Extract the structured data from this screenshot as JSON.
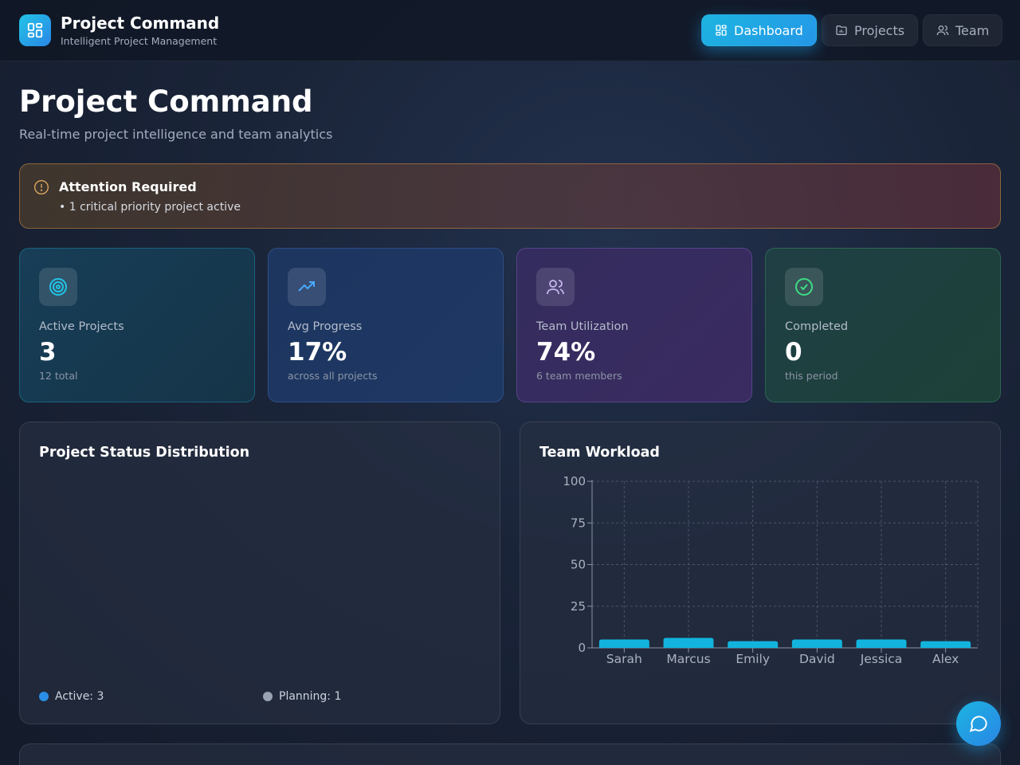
{
  "header": {
    "title": "Project Command",
    "subtitle": "Intelligent Project Management",
    "logo_icon": "grid-icon",
    "nav": [
      {
        "label": "Dashboard",
        "icon": "dashboard-icon",
        "active": true
      },
      {
        "label": "Projects",
        "icon": "folder-icon",
        "active": false
      },
      {
        "label": "Team",
        "icon": "users-icon",
        "active": false
      }
    ]
  },
  "page": {
    "title": "Project Command",
    "subtitle": "Real-time project intelligence and team analytics"
  },
  "alert": {
    "title": "Attention Required",
    "items": [
      "• 1 critical priority project active"
    ]
  },
  "stats": [
    {
      "label": "Active Projects",
      "value": "3",
      "sub": "12 total",
      "icon": "target-icon",
      "accent": "#22c4e6"
    },
    {
      "label": "Avg Progress",
      "value": "17%",
      "sub": "across all projects",
      "icon": "trending-up-icon",
      "accent": "#4aa8ff"
    },
    {
      "label": "Team Utilization",
      "value": "74%",
      "sub": "6 team members",
      "icon": "users-icon",
      "accent": "#c8b8f0"
    },
    {
      "label": "Completed",
      "value": "0",
      "sub": "this period",
      "icon": "check-circle-icon",
      "accent": "#3ddc84"
    }
  ],
  "status_panel": {
    "title": "Project Status Distribution",
    "legend": [
      {
        "label": "Active: 3",
        "color": "#2a8ee6"
      },
      {
        "label": "Planning: 1",
        "color": "#9aa3b2"
      }
    ]
  },
  "workload_panel": {
    "title": "Team Workload"
  },
  "chart_data": {
    "type": "bar",
    "title": "Team Workload",
    "categories": [
      "Sarah",
      "Marcus",
      "Emily",
      "David",
      "Jessica",
      "Alex"
    ],
    "values": [
      5,
      6,
      4,
      5,
      5,
      4
    ],
    "ylim": [
      0,
      100
    ],
    "yticks": [
      0,
      25,
      50,
      75,
      100
    ],
    "grid": true,
    "bar_color": "#12b4de"
  },
  "chat_button": {
    "icon": "chat-icon"
  }
}
